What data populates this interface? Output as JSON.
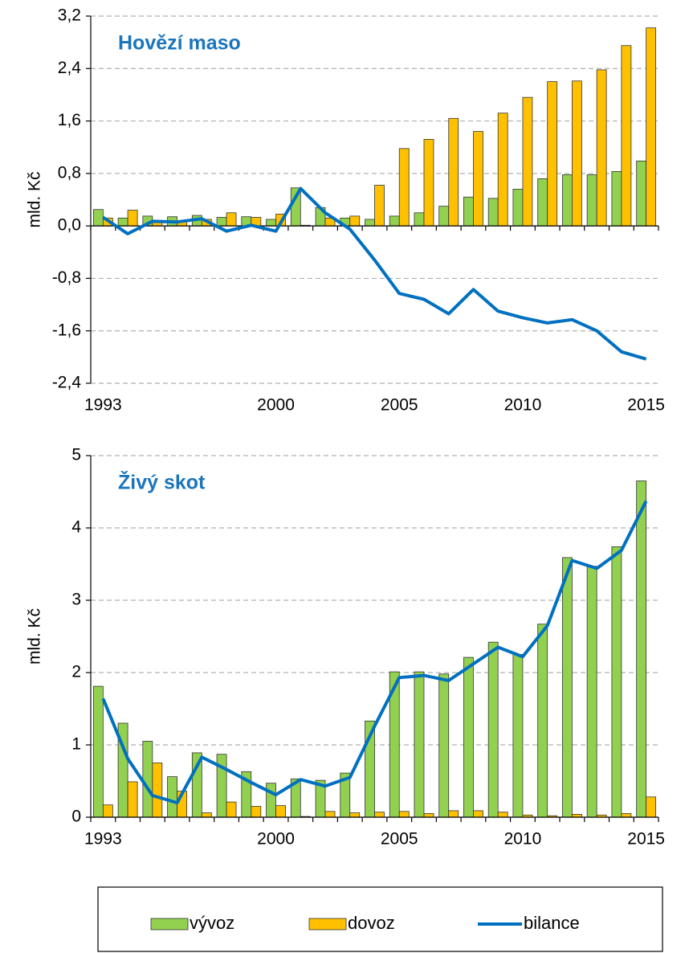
{
  "chart_data": [
    {
      "type": "bar",
      "title": "Hovězí maso",
      "y_label": "mld. Kč",
      "categories": [
        "1993",
        null,
        null,
        null,
        null,
        null,
        null,
        "2000",
        null,
        null,
        null,
        null,
        "2005",
        null,
        null,
        null,
        null,
        "2010",
        null,
        null,
        null,
        null,
        "2015"
      ],
      "series": [
        {
          "name": "vývoz",
          "color": "#92d050",
          "values": [
            0.25,
            0.12,
            0.15,
            0.14,
            0.16,
            0.13,
            0.14,
            0.1,
            0.58,
            0.28,
            0.12,
            0.1,
            0.15,
            0.2,
            0.3,
            0.44,
            0.42,
            0.56,
            0.72,
            0.78,
            0.78,
            0.83,
            0.99
          ]
        },
        {
          "name": "dovoz",
          "color": "#ffc000",
          "values": [
            0.12,
            0.24,
            0.08,
            0.08,
            0.1,
            0.2,
            0.13,
            0.18,
            0.01,
            0.12,
            0.15,
            0.62,
            1.18,
            1.32,
            1.64,
            1.44,
            1.72,
            1.96,
            2.2,
            2.21,
            2.38,
            2.75,
            3.02
          ]
        },
        {
          "name": "bilance",
          "type": "line",
          "color": "#0070c0",
          "values": [
            0.13,
            -0.12,
            0.07,
            0.06,
            0.11,
            -0.08,
            0.01,
            -0.08,
            0.57,
            0.2,
            -0.05,
            -0.52,
            -1.03,
            -1.12,
            -1.34,
            -0.97,
            -1.3,
            -1.4,
            -1.48,
            -1.43,
            -1.6,
            -1.92,
            -2.03
          ]
        }
      ],
      "ylim": [
        -2.4,
        3.2
      ],
      "yticks": [
        {
          "value": -2.4,
          "label": "-2,4"
        },
        {
          "value": -1.6,
          "label": "-1,6"
        },
        {
          "value": -0.8,
          "label": "-0,8"
        },
        {
          "value": 0,
          "label": "0,0"
        },
        {
          "value": 0.8,
          "label": "0,8"
        },
        {
          "value": 1.6,
          "label": "1,6"
        },
        {
          "value": 2.4,
          "label": "2,4"
        },
        {
          "value": 3.2,
          "label": "3,2"
        }
      ],
      "grid": true
    },
    {
      "type": "bar",
      "title": "Živý skot",
      "y_label": "mld. Kč",
      "categories": [
        "1993",
        null,
        null,
        null,
        null,
        null,
        null,
        "2000",
        null,
        null,
        null,
        null,
        "2005",
        null,
        null,
        null,
        null,
        "2010",
        null,
        null,
        null,
        null,
        "2015"
      ],
      "series": [
        {
          "color": "#92d050",
          "values": [
            1.81,
            1.3,
            1.05,
            0.56,
            0.89,
            0.87,
            0.63,
            0.47,
            0.53,
            0.51,
            0.61,
            1.33,
            2.01,
            2.01,
            1.98,
            2.21,
            2.42,
            2.25,
            2.67,
            3.59,
            3.47,
            3.74,
            4.65
          ]
        },
        {
          "color": "#ffc000",
          "values": [
            0.17,
            0.49,
            0.75,
            0.36,
            0.06,
            0.21,
            0.15,
            0.16,
            0.01,
            0.08,
            0.06,
            0.07,
            0.08,
            0.05,
            0.09,
            0.09,
            0.07,
            0.03,
            0.02,
            0.04,
            0.03,
            0.05,
            0.28
          ]
        },
        {
          "type": "line",
          "color": "#0070c0",
          "values": [
            1.64,
            0.81,
            0.3,
            0.2,
            0.83,
            0.66,
            0.48,
            0.31,
            0.52,
            0.43,
            0.55,
            1.26,
            1.93,
            1.96,
            1.89,
            2.12,
            2.35,
            2.22,
            2.65,
            3.55,
            3.44,
            3.69,
            4.37
          ]
        }
      ],
      "ylim": [
        0,
        5
      ],
      "yticks": [
        0,
        1,
        2,
        3,
        4,
        5
      ],
      "grid": true
    }
  ]
}
